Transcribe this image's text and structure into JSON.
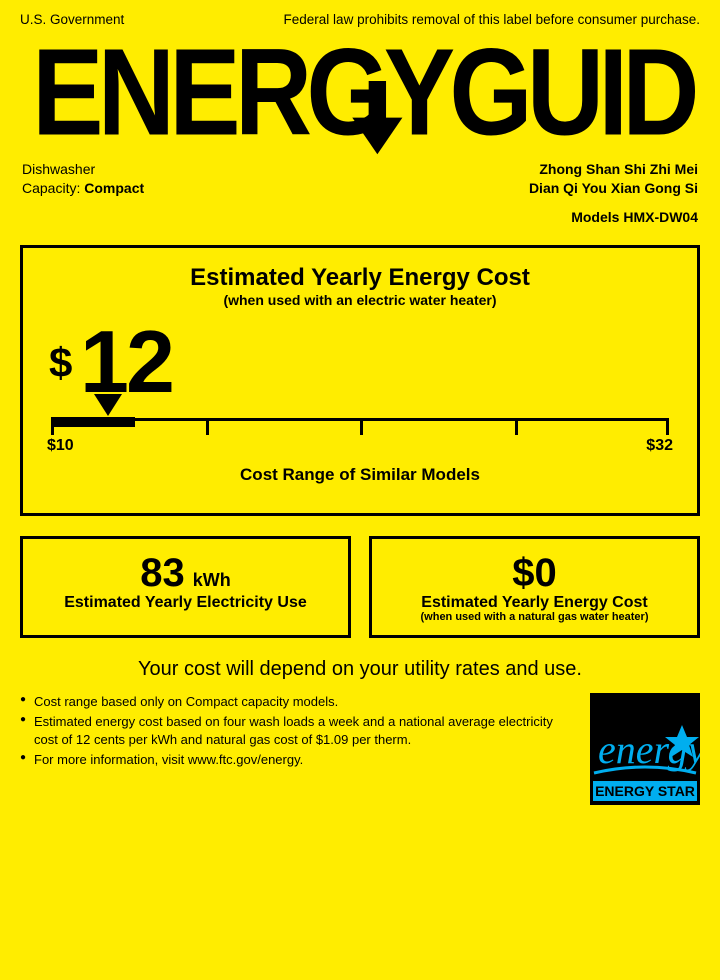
{
  "header": {
    "gov": "U.S. Government",
    "law": "Federal law prohibits removal of this label before consumer purchase."
  },
  "logo_text": "ENERGYGUIDE",
  "appliance": {
    "type_label": "Dishwasher",
    "capacity_label": "Capacity:",
    "capacity_value": "Compact"
  },
  "mfr": {
    "line1": "Zhong Shan Shi Zhi Mei",
    "line2": "Dian Qi You Xian Gong Si",
    "models_label": "Models",
    "models_value": "HMX-DW04"
  },
  "cost": {
    "title": "Estimated Yearly Energy Cost",
    "subtitle": "(when used with an electric water heater)",
    "value": "12",
    "dollar": "$",
    "scale_min": 10,
    "scale_max": 32,
    "scale_value": 12,
    "min_label": "$10",
    "max_label": "$32",
    "caption": "Cost Range of Similar Models",
    "tick_positions_pct": [
      0,
      25,
      50,
      75,
      100
    ],
    "marker_pct": 9.1,
    "thick_start_pct": 0,
    "thick_end_pct": 13.6
  },
  "kwh": {
    "value": "83",
    "unit": "kWh",
    "label": "Estimated Yearly Electricity Use"
  },
  "gas": {
    "dollar": "$",
    "value": "0",
    "label": "Estimated Yearly Energy Cost",
    "sub": "(when used with a natural gas water heater)"
  },
  "footer_line": "Your cost will depend on your utility rates and use.",
  "bullets": [
    "Cost range based only on Compact capacity models.",
    "Estimated energy cost based on four wash loads a week and a national average electricity cost of 12 cents per kWh and natural gas cost of $1.09 per therm.",
    "For more information, visit www.ftc.gov/energy."
  ],
  "estar_label": "ENERGY STAR",
  "colors": {
    "bg": "#ffed00",
    "fg": "#000000",
    "estar_bg": "#000000",
    "estar_fg": "#00aeef"
  }
}
